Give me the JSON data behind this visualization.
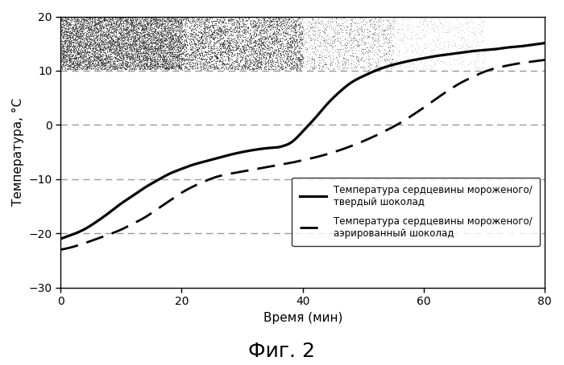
{
  "title": "Фиг. 2",
  "xlabel": "Время (мин)",
  "ylabel": "Температура, °С",
  "xlim": [
    0,
    80
  ],
  "ylim": [
    -30,
    20
  ],
  "yticks": [
    -30,
    -20,
    -10,
    0,
    10,
    20
  ],
  "xticks": [
    0,
    20,
    40,
    60,
    80
  ],
  "hlines": [
    10,
    0,
    -10,
    -20
  ],
  "solid_x": [
    0,
    2,
    4,
    6,
    8,
    10,
    12,
    14,
    16,
    18,
    20,
    22,
    24,
    26,
    28,
    30,
    32,
    34,
    35,
    36,
    37,
    38,
    40,
    42,
    44,
    46,
    48,
    50,
    52,
    54,
    56,
    58,
    60,
    62,
    64,
    66,
    68,
    70,
    72,
    74,
    76,
    78,
    80
  ],
  "solid_y": [
    -21,
    -20.2,
    -19.2,
    -17.8,
    -16.2,
    -14.5,
    -13.0,
    -11.5,
    -10.2,
    -9.0,
    -8.1,
    -7.3,
    -6.7,
    -6.1,
    -5.5,
    -5.0,
    -4.6,
    -4.3,
    -4.2,
    -4.1,
    -3.8,
    -3.3,
    -1.2,
    1.2,
    3.8,
    6.0,
    7.8,
    9.0,
    10.0,
    10.8,
    11.4,
    11.9,
    12.3,
    12.7,
    13.0,
    13.3,
    13.6,
    13.8,
    14.0,
    14.3,
    14.5,
    14.8,
    15.1
  ],
  "dashed_x": [
    0,
    2,
    4,
    6,
    8,
    10,
    12,
    14,
    16,
    18,
    20,
    22,
    24,
    26,
    28,
    30,
    32,
    34,
    36,
    38,
    40,
    42,
    44,
    46,
    48,
    50,
    52,
    54,
    56,
    58,
    60,
    62,
    64,
    66,
    68,
    70,
    72,
    74,
    76,
    78,
    80
  ],
  "dashed_y": [
    -23,
    -22.5,
    -21.8,
    -21.0,
    -20.2,
    -19.3,
    -18.2,
    -17.0,
    -15.5,
    -14.0,
    -12.5,
    -11.3,
    -10.3,
    -9.5,
    -9.0,
    -8.6,
    -8.2,
    -7.8,
    -7.4,
    -7.0,
    -6.5,
    -6.0,
    -5.4,
    -4.7,
    -3.9,
    -3.0,
    -2.0,
    -0.9,
    0.3,
    1.7,
    3.2,
    4.8,
    6.3,
    7.7,
    8.8,
    9.8,
    10.5,
    11.0,
    11.4,
    11.7,
    12.0
  ],
  "legend_solid": "Температура сердцевины мороженого/\nтвердый шоколад",
  "legend_dashed": "Температура сердцевины мороженого/\nаэрированный шоколад",
  "background_color": "#ffffff",
  "line_color": "#000000",
  "hline_color": "#999999",
  "noise_color_dark": "#333333",
  "noise_color_mid": "#666666",
  "noise_color_light": "#aaaaaa"
}
